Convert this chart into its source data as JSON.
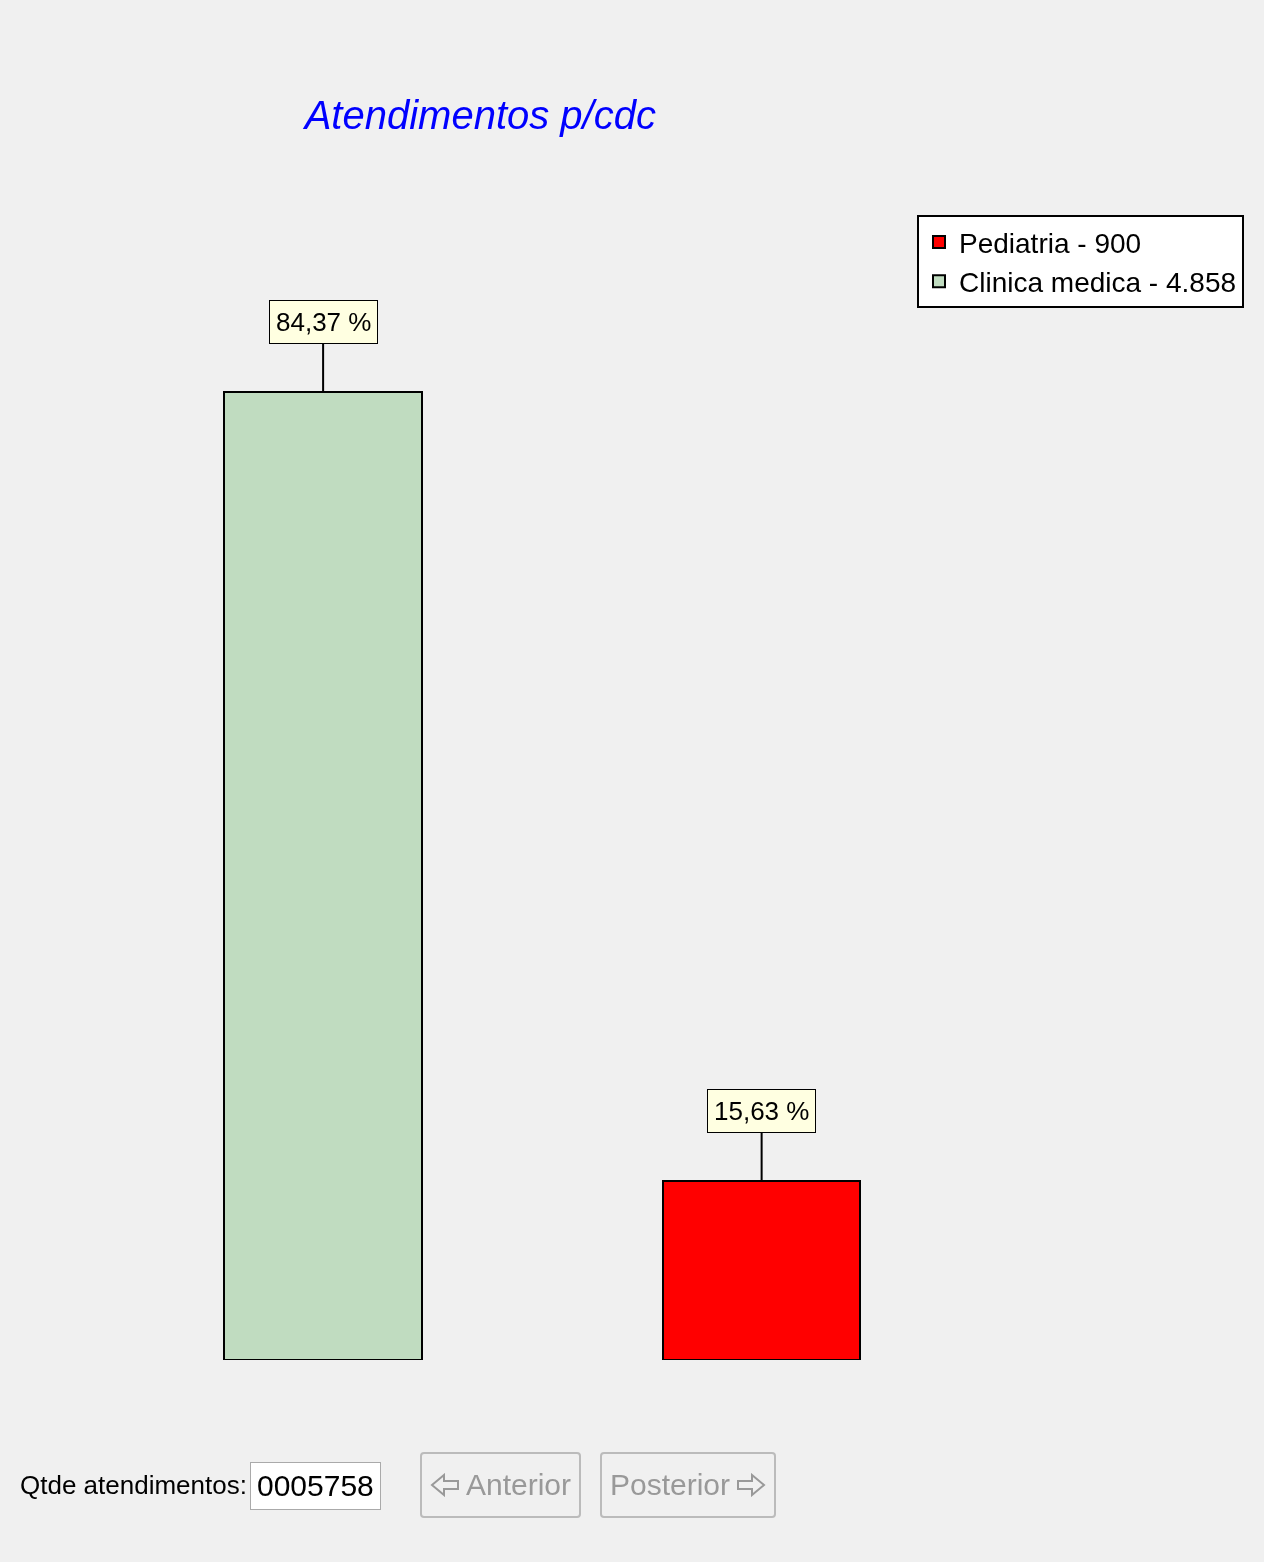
{
  "chart_data": {
    "type": "bar",
    "title": "Atendimentos p/cdc",
    "categories": [
      null,
      null
    ],
    "series": [
      {
        "name": "Clinica medica - 4.858",
        "color": "#c0dcc0",
        "values": [
          84.37,
          null
        ],
        "value_labels": [
          "84,37 %",
          null
        ]
      },
      {
        "name": "Pediatria - 900",
        "color": "#ff0000",
        "values": [
          null,
          15.63
        ],
        "value_labels": [
          null,
          "15,63 %"
        ]
      }
    ],
    "legend": "top right",
    "stacked": true,
    "annotations": [
      "Qtde atendimentos:",
      "0005758",
      "Anterior",
      "Posterior"
    ]
  }
}
